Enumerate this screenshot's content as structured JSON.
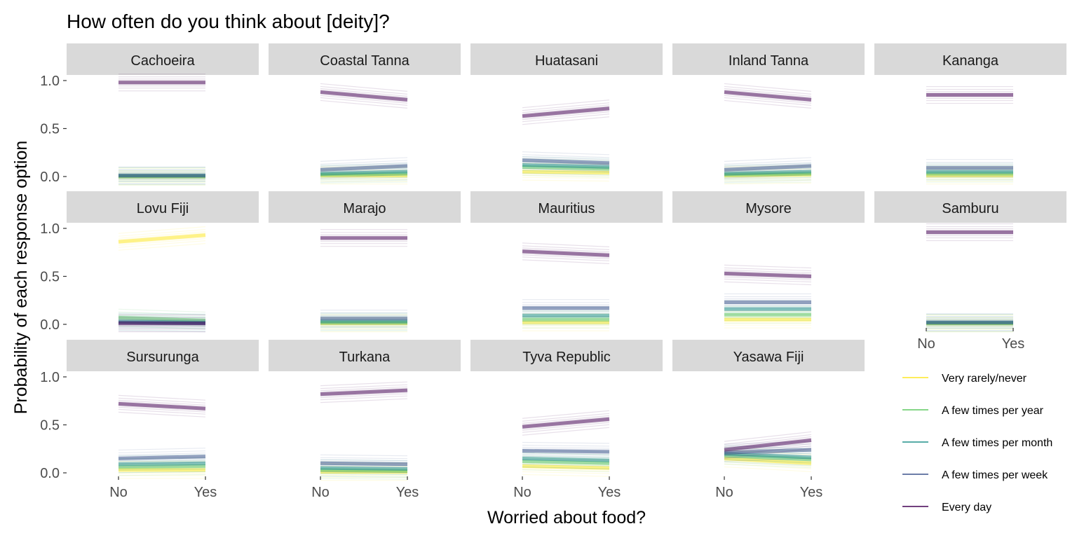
{
  "chart_data": {
    "type": "line",
    "title": "How often do you think about [deity]?",
    "xlabel": "Worried about food?",
    "ylabel": "Probability of each response option",
    "x": [
      "No",
      "Yes"
    ],
    "ylim": [
      0,
      1
    ],
    "yticks": [
      "0.0",
      "0.5",
      "1.0"
    ],
    "grid": false,
    "legend_position": "bottom-right",
    "legend": [
      {
        "label": "Very rarely/never",
        "color": "#FDE725"
      },
      {
        "label": "A few times per year",
        "color": "#5EC962"
      },
      {
        "label": "A few times per month",
        "color": "#21918C"
      },
      {
        "label": "A few times per week",
        "color": "#3B528B"
      },
      {
        "label": "Every day",
        "color": "#440154"
      }
    ],
    "panels": [
      {
        "name": "Cachoeira",
        "series": [
          {
            "name": "Very rarely/never",
            "values": [
              0.0,
              0.0
            ]
          },
          {
            "name": "A few times per year",
            "values": [
              0.0,
              0.0
            ]
          },
          {
            "name": "A few times per month",
            "values": [
              0.01,
              0.01
            ]
          },
          {
            "name": "A few times per week",
            "values": [
              0.01,
              0.01
            ]
          },
          {
            "name": "Every day",
            "values": [
              0.98,
              0.98
            ]
          }
        ]
      },
      {
        "name": "Coastal Tanna",
        "series": [
          {
            "name": "Very rarely/never",
            "values": [
              0.01,
              0.01
            ]
          },
          {
            "name": "A few times per year",
            "values": [
              0.02,
              0.03
            ]
          },
          {
            "name": "A few times per month",
            "values": [
              0.03,
              0.05
            ]
          },
          {
            "name": "A few times per week",
            "values": [
              0.07,
              0.11
            ]
          },
          {
            "name": "Every day",
            "values": [
              0.88,
              0.8
            ]
          }
        ]
      },
      {
        "name": "Huatasani",
        "series": [
          {
            "name": "Very rarely/never",
            "values": [
              0.05,
              0.04
            ]
          },
          {
            "name": "A few times per year",
            "values": [
              0.1,
              0.08
            ]
          },
          {
            "name": "A few times per month",
            "values": [
              0.12,
              0.1
            ]
          },
          {
            "name": "A few times per week",
            "values": [
              0.17,
              0.14
            ]
          },
          {
            "name": "Every day",
            "values": [
              0.63,
              0.71
            ]
          }
        ]
      },
      {
        "name": "Inland Tanna",
        "series": [
          {
            "name": "Very rarely/never",
            "values": [
              0.01,
              0.02
            ]
          },
          {
            "name": "A few times per year",
            "values": [
              0.02,
              0.03
            ]
          },
          {
            "name": "A few times per month",
            "values": [
              0.03,
              0.05
            ]
          },
          {
            "name": "A few times per week",
            "values": [
              0.07,
              0.11
            ]
          },
          {
            "name": "Every day",
            "values": [
              0.88,
              0.8
            ]
          }
        ]
      },
      {
        "name": "Kananga",
        "series": [
          {
            "name": "Very rarely/never",
            "values": [
              0.01,
              0.01
            ]
          },
          {
            "name": "A few times per year",
            "values": [
              0.03,
              0.03
            ]
          },
          {
            "name": "A few times per month",
            "values": [
              0.05,
              0.05
            ]
          },
          {
            "name": "A few times per week",
            "values": [
              0.09,
              0.09
            ]
          },
          {
            "name": "Every day",
            "values": [
              0.85,
              0.85
            ]
          }
        ]
      },
      {
        "name": "Lovu Fiji",
        "series": [
          {
            "name": "Very rarely/never",
            "values": [
              0.86,
              0.93
            ]
          },
          {
            "name": "A few times per year",
            "values": [
              0.07,
              0.04
            ]
          },
          {
            "name": "A few times per month",
            "values": [
              0.03,
              0.02
            ]
          },
          {
            "name": "A few times per week",
            "values": [
              0.02,
              0.01
            ]
          },
          {
            "name": "Every day",
            "values": [
              0.01,
              0.01
            ]
          }
        ]
      },
      {
        "name": "Marajo",
        "series": [
          {
            "name": "Very rarely/never",
            "values": [
              0.01,
              0.01
            ]
          },
          {
            "name": "A few times per year",
            "values": [
              0.02,
              0.02
            ]
          },
          {
            "name": "A few times per month",
            "values": [
              0.03,
              0.03
            ]
          },
          {
            "name": "A few times per week",
            "values": [
              0.06,
              0.06
            ]
          },
          {
            "name": "Every day",
            "values": [
              0.9,
              0.9
            ]
          }
        ]
      },
      {
        "name": "Mauritius",
        "series": [
          {
            "name": "Very rarely/never",
            "values": [
              0.02,
              0.02
            ]
          },
          {
            "name": "A few times per year",
            "values": [
              0.05,
              0.05
            ]
          },
          {
            "name": "A few times per month",
            "values": [
              0.09,
              0.09
            ]
          },
          {
            "name": "A few times per week",
            "values": [
              0.17,
              0.17
            ]
          },
          {
            "name": "Every day",
            "values": [
              0.76,
              0.72
            ]
          }
        ]
      },
      {
        "name": "Mysore",
        "series": [
          {
            "name": "Very rarely/never",
            "values": [
              0.05,
              0.05
            ]
          },
          {
            "name": "A few times per year",
            "values": [
              0.1,
              0.1
            ]
          },
          {
            "name": "A few times per month",
            "values": [
              0.16,
              0.16
            ]
          },
          {
            "name": "A few times per week",
            "values": [
              0.23,
              0.23
            ]
          },
          {
            "name": "Every day",
            "values": [
              0.53,
              0.5
            ]
          }
        ]
      },
      {
        "name": "Samburu",
        "series": [
          {
            "name": "Very rarely/never",
            "values": [
              0.01,
              0.01
            ]
          },
          {
            "name": "A few times per year",
            "values": [
              0.01,
              0.01
            ]
          },
          {
            "name": "A few times per month",
            "values": [
              0.02,
              0.02
            ]
          },
          {
            "name": "A few times per week",
            "values": [
              0.02,
              0.02
            ]
          },
          {
            "name": "Every day",
            "values": [
              0.96,
              0.96
            ]
          }
        ]
      },
      {
        "name": "Sursurunga",
        "series": [
          {
            "name": "Very rarely/never",
            "values": [
              0.03,
              0.03
            ]
          },
          {
            "name": "A few times per year",
            "values": [
              0.06,
              0.07
            ]
          },
          {
            "name": "A few times per month",
            "values": [
              0.09,
              0.1
            ]
          },
          {
            "name": "A few times per week",
            "values": [
              0.15,
              0.17
            ]
          },
          {
            "name": "Every day",
            "values": [
              0.72,
              0.67
            ]
          }
        ]
      },
      {
        "name": "Turkana",
        "series": [
          {
            "name": "Very rarely/never",
            "values": [
              0.01,
              0.01
            ]
          },
          {
            "name": "A few times per year",
            "values": [
              0.03,
              0.02
            ]
          },
          {
            "name": "A few times per month",
            "values": [
              0.05,
              0.04
            ]
          },
          {
            "name": "A few times per week",
            "values": [
              0.1,
              0.09
            ]
          },
          {
            "name": "Every day",
            "values": [
              0.82,
              0.86
            ]
          }
        ]
      },
      {
        "name": "Tyva Republic",
        "series": [
          {
            "name": "Very rarely/never",
            "values": [
              0.07,
              0.05
            ]
          },
          {
            "name": "A few times per year",
            "values": [
              0.12,
              0.1
            ]
          },
          {
            "name": "A few times per month",
            "values": [
              0.15,
              0.13
            ]
          },
          {
            "name": "A few times per week",
            "values": [
              0.23,
              0.22
            ]
          },
          {
            "name": "Every day",
            "values": [
              0.48,
              0.56
            ]
          }
        ]
      },
      {
        "name": "Yasawa Fiji",
        "series": [
          {
            "name": "Very rarely/never",
            "values": [
              0.15,
              0.1
            ]
          },
          {
            "name": "A few times per year",
            "values": [
              0.18,
              0.14
            ]
          },
          {
            "name": "A few times per month",
            "values": [
              0.2,
              0.16
            ]
          },
          {
            "name": "A few times per week",
            "values": [
              0.21,
              0.24
            ]
          },
          {
            "name": "Every day",
            "values": [
              0.24,
              0.34
            ]
          }
        ]
      }
    ]
  }
}
